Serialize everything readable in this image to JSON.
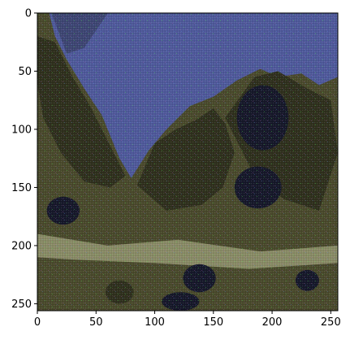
{
  "chart_data": {
    "type": "heatmap",
    "title": "",
    "xlabel": "",
    "ylabel": "",
    "xlim": [
      0,
      256
    ],
    "ylim": [
      256,
      0
    ],
    "x_ticks": [
      0,
      50,
      100,
      150,
      200,
      250
    ],
    "y_ticks": [
      0,
      50,
      100,
      150,
      200,
      250
    ],
    "grid": false,
    "legend": "none",
    "image_description": "Noisy RGB image with checkerboard pixel artifacts: blue-purple sky in the upper-left, dark olive/brown jagged mountain-like shapes and dark blob regions across the rest.",
    "colors": {
      "sky": "#4f5a9c",
      "sky_dark": "#3e4674",
      "terrain": "#4a4a2c",
      "terrain_dark": "#2f301d",
      "shadow": "#16182a",
      "highlight": "#8a8c66",
      "speckle_green": "#4cff4c",
      "speckle_magenta": "#c85ad8"
    }
  }
}
